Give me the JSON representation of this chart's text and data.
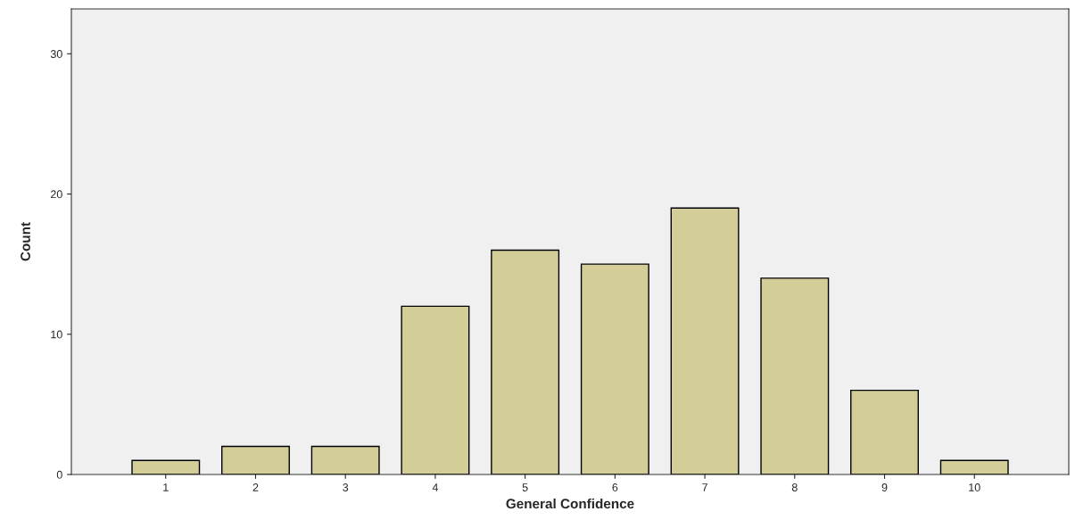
{
  "chart_data": {
    "type": "bar",
    "xlabel": "General Confidence",
    "ylabel": "Count",
    "categories": [
      "1",
      "2",
      "3",
      "4",
      "5",
      "6",
      "7",
      "8",
      "9",
      "10"
    ],
    "values": [
      1,
      2,
      2,
      12,
      16,
      15,
      19,
      14,
      6,
      1
    ],
    "color": "#d3ce97",
    "ylim": [
      0,
      33.2
    ],
    "yticks": [
      0,
      10,
      20,
      30
    ],
    "grid": false
  }
}
